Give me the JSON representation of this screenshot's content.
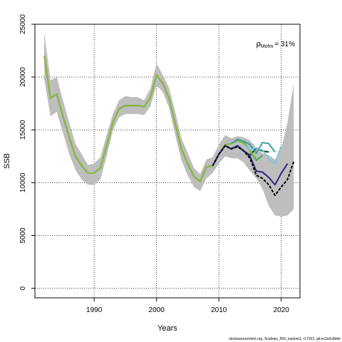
{
  "chart_data": {
    "type": "line",
    "xlabel": "Years",
    "ylabel": "SSB",
    "xlim": [
      1980.5,
      2023
    ],
    "ylim": [
      -900,
      25000
    ],
    "x_ticks": [
      1990,
      2000,
      2010,
      2020
    ],
    "y_ticks": [
      0,
      5000,
      10000,
      15000,
      20000,
      25000
    ],
    "grid": "dotted",
    "annotation": {
      "rho": "ρ",
      "sub": "Mohn",
      "value": "= 31%"
    },
    "caption": "stockassessment.org, Scallops_NW_explore1, r17921, git:ec2a0c8dde",
    "confidence_band": {
      "x": [
        1982,
        1983,
        1984,
        1985,
        1986,
        1987,
        1988,
        1989,
        1990,
        1991,
        1992,
        1993,
        1994,
        1995,
        1996,
        1997,
        1998,
        1999,
        2000,
        2001,
        2002,
        2003,
        2004,
        2005,
        2006,
        2007,
        2008,
        2009,
        2010,
        2011,
        2012,
        2013,
        2014,
        2015,
        2016,
        2017,
        2018,
        2019,
        2020,
        2021,
        2022
      ],
      "upper": [
        24200,
        19700,
        20000,
        17800,
        15700,
        13700,
        12700,
        11700,
        11800,
        12400,
        14500,
        16500,
        17800,
        18200,
        18100,
        18100,
        17800,
        18900,
        21300,
        20200,
        19000,
        16700,
        14200,
        12800,
        11400,
        10800,
        12200,
        12400,
        13600,
        14500,
        14200,
        14400,
        14300,
        14000,
        13300,
        12800,
        12600,
        12200,
        13200,
        15700,
        19400
      ],
      "lower": [
        19800,
        16300,
        16700,
        14700,
        12700,
        11200,
        10300,
        9800,
        9800,
        10300,
        12500,
        14900,
        16200,
        16500,
        16500,
        16500,
        16400,
        17200,
        19200,
        18600,
        17100,
        14500,
        12100,
        10700,
        9600,
        9200,
        10400,
        10900,
        11800,
        12500,
        12300,
        12300,
        11900,
        11100,
        10400,
        9400,
        7800,
        6900,
        6800,
        6900,
        7500
      ]
    },
    "series": [
      {
        "color": "#00441b",
        "x": [
          1982,
          1983,
          1984,
          1985,
          1986,
          1987,
          1988,
          1989,
          1990,
          1991,
          1992,
          1993,
          1994,
          1995,
          1996,
          1997,
          1998,
          1999,
          2000,
          2001,
          2002,
          2003,
          2004,
          2005,
          2006,
          2007,
          2008,
          2009,
          2010,
          2011,
          2012,
          2013,
          2014,
          2015,
          2016,
          2017,
          2018
        ],
        "y": [
          22000,
          18000,
          18400,
          16300,
          14300,
          12500,
          11600,
          10900,
          10900,
          11400,
          13500,
          15700,
          17000,
          17300,
          17300,
          17300,
          17200,
          18000,
          20200,
          19400,
          18000,
          15600,
          13200,
          11800,
          10600,
          10100,
          11500,
          11600,
          12700,
          13500,
          13200,
          13500,
          13000,
          12600,
          13300,
          13000,
          12900
        ]
      },
      {
        "color": "#41ab5d",
        "x": [
          1982,
          1983,
          1984,
          1985,
          1986,
          1987,
          1988,
          1989,
          1990,
          1991,
          1992,
          1993,
          1994,
          1995,
          1996,
          1997,
          1998,
          1999,
          2000,
          2001,
          2002,
          2003,
          2004,
          2005,
          2006,
          2007,
          2008,
          2009,
          2010,
          2011,
          2012,
          2013,
          2014,
          2015,
          2016,
          2017
        ],
        "y": [
          22000,
          18000,
          18400,
          16300,
          14300,
          12500,
          11600,
          10900,
          10900,
          11400,
          13500,
          15700,
          17000,
          17300,
          17300,
          17300,
          17200,
          18000,
          20200,
          19400,
          18000,
          15600,
          13200,
          11800,
          10600,
          10100,
          11500,
          11600,
          12700,
          13600,
          13700,
          14100,
          13800,
          13000,
          12100,
          12600
        ]
      },
      {
        "color": "#8fb83a",
        "x": [
          1982,
          1983,
          1984,
          1985,
          1986,
          1987,
          1988,
          1989,
          1990,
          1991,
          1992,
          1993,
          1994,
          1995,
          1996,
          1997,
          1998,
          1999,
          2000,
          2001,
          2002,
          2003,
          2004,
          2005,
          2006,
          2007,
          2008,
          2009,
          2010,
          2011,
          2012,
          2013,
          2014,
          2015,
          2016
        ],
        "y": [
          22000,
          18000,
          18400,
          16300,
          14300,
          12500,
          11600,
          10900,
          10900,
          11400,
          13500,
          15700,
          17000,
          17300,
          17300,
          17300,
          17200,
          18000,
          20200,
          19400,
          18000,
          15600,
          13200,
          11800,
          10600,
          10100,
          11500,
          11600,
          12700,
          13600,
          13700,
          14000,
          13700,
          13000,
          12300
        ]
      },
      {
        "color": "#3a9f96",
        "x": [
          2012,
          2013,
          2014,
          2015,
          2016,
          2017,
          2018,
          2019,
          2020
        ],
        "y": [
          13700,
          14100,
          13900,
          13600,
          12800,
          13800,
          13700,
          12900,
          null
        ]
      },
      {
        "color": "#7ec8e3",
        "x": [
          2014,
          2015,
          2016,
          2017,
          2018,
          2019,
          2020
        ],
        "y": [
          13600,
          13100,
          13300,
          13100,
          12300,
          11800,
          13500
        ]
      },
      {
        "color": "#2f2580",
        "x": [
          2009,
          2010,
          2011,
          2012,
          2013,
          2014,
          2015,
          2016,
          2017,
          2018,
          2019,
          2020,
          2021
        ],
        "y": [
          11600,
          12700,
          13500,
          13200,
          13500,
          13000,
          12500,
          11100,
          11000,
          10500,
          9800,
          10900,
          11800
        ]
      },
      {
        "color": "#000000",
        "dashed": true,
        "x": [
          2009,
          2010,
          2011,
          2012,
          2013,
          2014,
          2015,
          2016,
          2017,
          2018,
          2019,
          2020,
          2021,
          2022
        ],
        "y": [
          11600,
          12700,
          13500,
          13200,
          13400,
          13000,
          12300,
          10700,
          10400,
          9800,
          8800,
          9600,
          10300,
          12000
        ]
      }
    ]
  }
}
